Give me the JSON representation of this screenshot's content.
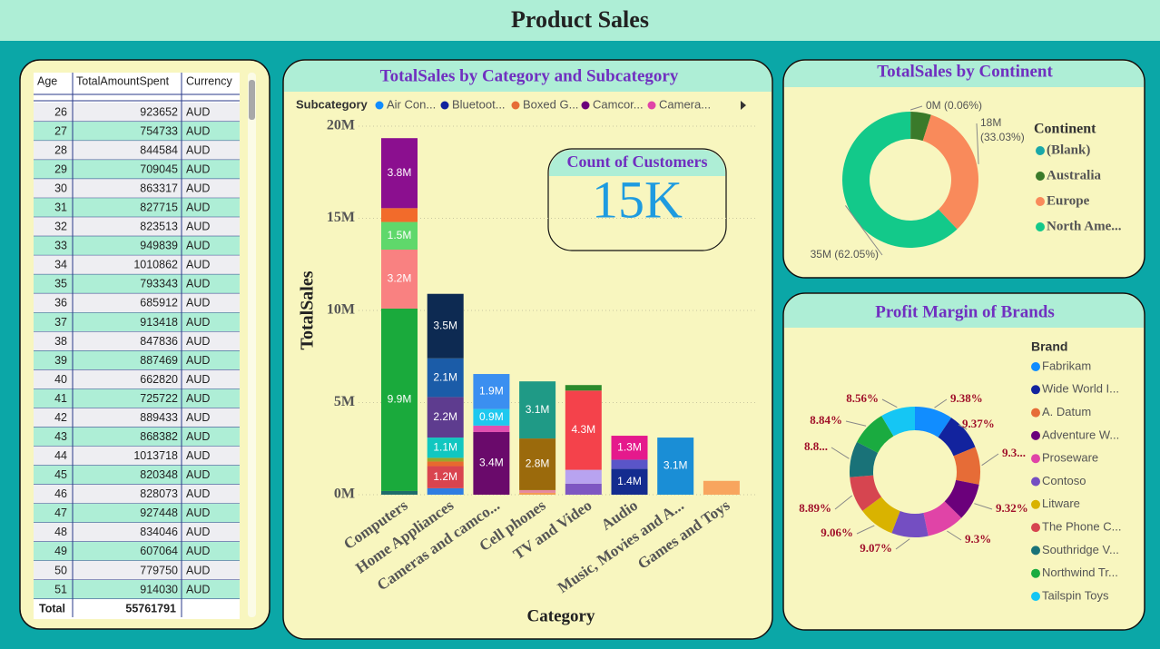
{
  "header": {
    "title": "Product Sales"
  },
  "table": {
    "columns": [
      "Age",
      "TotalAmountSpent",
      "Currency"
    ],
    "rows": [
      [
        26,
        923652,
        "AUD"
      ],
      [
        27,
        754733,
        "AUD"
      ],
      [
        28,
        844584,
        "AUD"
      ],
      [
        29,
        709045,
        "AUD"
      ],
      [
        30,
        863317,
        "AUD"
      ],
      [
        31,
        827715,
        "AUD"
      ],
      [
        32,
        823513,
        "AUD"
      ],
      [
        33,
        949839,
        "AUD"
      ],
      [
        34,
        1010862,
        "AUD"
      ],
      [
        35,
        793343,
        "AUD"
      ],
      [
        36,
        685912,
        "AUD"
      ],
      [
        37,
        913418,
        "AUD"
      ],
      [
        38,
        847836,
        "AUD"
      ],
      [
        39,
        887469,
        "AUD"
      ],
      [
        40,
        662820,
        "AUD"
      ],
      [
        41,
        725722,
        "AUD"
      ],
      [
        42,
        889433,
        "AUD"
      ],
      [
        43,
        868382,
        "AUD"
      ],
      [
        44,
        1013718,
        "AUD"
      ],
      [
        45,
        820348,
        "AUD"
      ],
      [
        46,
        828073,
        "AUD"
      ],
      [
        47,
        927448,
        "AUD"
      ],
      [
        48,
        834046,
        "AUD"
      ],
      [
        49,
        607064,
        "AUD"
      ],
      [
        50,
        779750,
        "AUD"
      ],
      [
        51,
        914030,
        "AUD"
      ]
    ],
    "total": [
      "Total",
      55761791
    ]
  },
  "card": {
    "title": "Count of Customers",
    "value": "15K"
  },
  "chart_data": [
    {
      "type": "stacked_bar",
      "title": "TotalSales by Category and Subcategory",
      "legend_title": "Subcategory",
      "legend": [
        {
          "name": "Air Con...",
          "color": "#118dff"
        },
        {
          "name": "Bluetoot...",
          "color": "#12239e"
        },
        {
          "name": "Boxed G...",
          "color": "#e66c37"
        },
        {
          "name": "Camcor...",
          "color": "#6b007b"
        },
        {
          "name": "Camera...",
          "color": "#e044a7"
        }
      ],
      "x_label": "Category",
      "y_label": "TotalSales",
      "categories": [
        "Computers",
        "Home Appliances",
        "Cameras and camco...",
        "Cell phones",
        "TV and Video",
        "Audio",
        "Music, Movies and A...",
        "Games and Toys"
      ],
      "stacks": [
        [
          {
            "value": 200000,
            "color": "#1f6b6b"
          },
          {
            "value": 9900000,
            "color": "#1aaa3c",
            "value_label": "9.9M"
          },
          {
            "value": 3200000,
            "color": "#f98181",
            "value_label": "3.2M"
          },
          {
            "value": 1500000,
            "color": "#5fd86b",
            "value_label": "1.5M"
          },
          {
            "value": 750000,
            "color": "#f26b2b"
          },
          {
            "value": 3800000,
            "color": "#8b0f8f",
            "value_label": "3.8M"
          }
        ],
        [
          {
            "value": 350000,
            "color": "#2f7de1"
          },
          {
            "value": 1200000,
            "color": "#d9444f",
            "value_label": "1.2M"
          },
          {
            "value": 250000,
            "color": "#e8692e"
          },
          {
            "value": 200000,
            "color": "#9aa52b"
          },
          {
            "value": 1100000,
            "color": "#11c7c0",
            "value_label": "1.1M"
          },
          {
            "value": 2200000,
            "color": "#5e3c8f",
            "value_label": "2.2M"
          },
          {
            "value": 2100000,
            "color": "#1b5ca8",
            "value_label": "2.1M"
          },
          {
            "value": 3500000,
            "color": "#0d2a52",
            "value_label": "3.5M"
          }
        ],
        [
          {
            "value": 3400000,
            "color": "#6a0a6b",
            "value_label": "3.4M"
          },
          {
            "value": 350000,
            "color": "#e04fb0"
          },
          {
            "value": 900000,
            "color": "#1ec8ef",
            "value_label": "0.9M"
          },
          {
            "value": 1900000,
            "color": "#3b8ff0",
            "value_label": "1.9M"
          }
        ],
        [
          {
            "value": 100000,
            "color": "#f39c52"
          },
          {
            "value": 150000,
            "color": "#e58aa0"
          },
          {
            "value": 2800000,
            "color": "#9b6a0c",
            "value_label": "2.8M"
          },
          {
            "value": 3100000,
            "color": "#1f9a86",
            "value_label": "3.1M"
          }
        ],
        [
          {
            "value": 600000,
            "color": "#7e57c2"
          },
          {
            "value": 750000,
            "color": "#b8a3f0"
          },
          {
            "value": 4300000,
            "color": "#f4424b",
            "value_label": "4.3M"
          },
          {
            "value": 300000,
            "color": "#2b8a2b"
          }
        ],
        [
          {
            "value": 1400000,
            "color": "#142c8f",
            "value_label": "1.4M"
          },
          {
            "value": 500000,
            "color": "#5a55c8"
          },
          {
            "value": 1300000,
            "color": "#e5198c",
            "value_label": "1.3M"
          }
        ],
        [
          {
            "value": 3100000,
            "color": "#1a8ed6",
            "value_label": "3.1M"
          }
        ],
        [
          {
            "value": 750000,
            "color": "#f8a55e"
          }
        ]
      ],
      "ylim": [
        0,
        20000000
      ],
      "yticks": [
        {
          "value": 0,
          "label": "0M"
        },
        {
          "value": 5000000,
          "label": "5M"
        },
        {
          "value": 10000000,
          "label": "10M"
        },
        {
          "value": 15000000,
          "label": "15M"
        },
        {
          "value": 20000000,
          "label": "20M"
        }
      ],
      "grid": true
    },
    {
      "type": "donut",
      "title": "TotalSales by Continent",
      "legend_title": "Continent",
      "categories": [
        "(Blank)",
        "Australia",
        "Europe",
        "North Ame..."
      ],
      "values": [
        33457,
        2710000,
        18418000,
        34600000
      ],
      "colors": [
        "#1aa8a8",
        "#3a7a2a",
        "#f98a5b",
        "#13c98a"
      ],
      "value_labels": [
        "0M (0.06%)",
        null,
        "18M (33.03%)",
        "35M (62.05%)"
      ]
    },
    {
      "type": "donut",
      "title": "Profit Margin of Brands",
      "legend_title": "Brand",
      "categories": [
        "Fabrikam",
        "Wide World I...",
        "A. Datum",
        "Adventure W...",
        "Proseware",
        "Contoso",
        "Litware",
        "The Phone C...",
        "Southridge V...",
        "Northwind Tr...",
        "Tailspin Toys"
      ],
      "values": [
        9.38,
        9.37,
        9.35,
        9.32,
        9.3,
        9.07,
        9.06,
        8.89,
        8.86,
        8.84,
        8.56
      ],
      "colors": [
        "#118dff",
        "#12239e",
        "#e66c37",
        "#6b007b",
        "#e044a7",
        "#744ec2",
        "#d9b300",
        "#d64550",
        "#197278",
        "#1aab40",
        "#15c6f4"
      ],
      "value_labels": [
        "9.38%",
        "9.37%",
        "9.3...",
        "9.32%",
        "9.3%",
        "9.07%",
        "9.06%",
        "8.89%",
        "8.8...",
        "8.84%",
        "8.56%"
      ]
    }
  ]
}
